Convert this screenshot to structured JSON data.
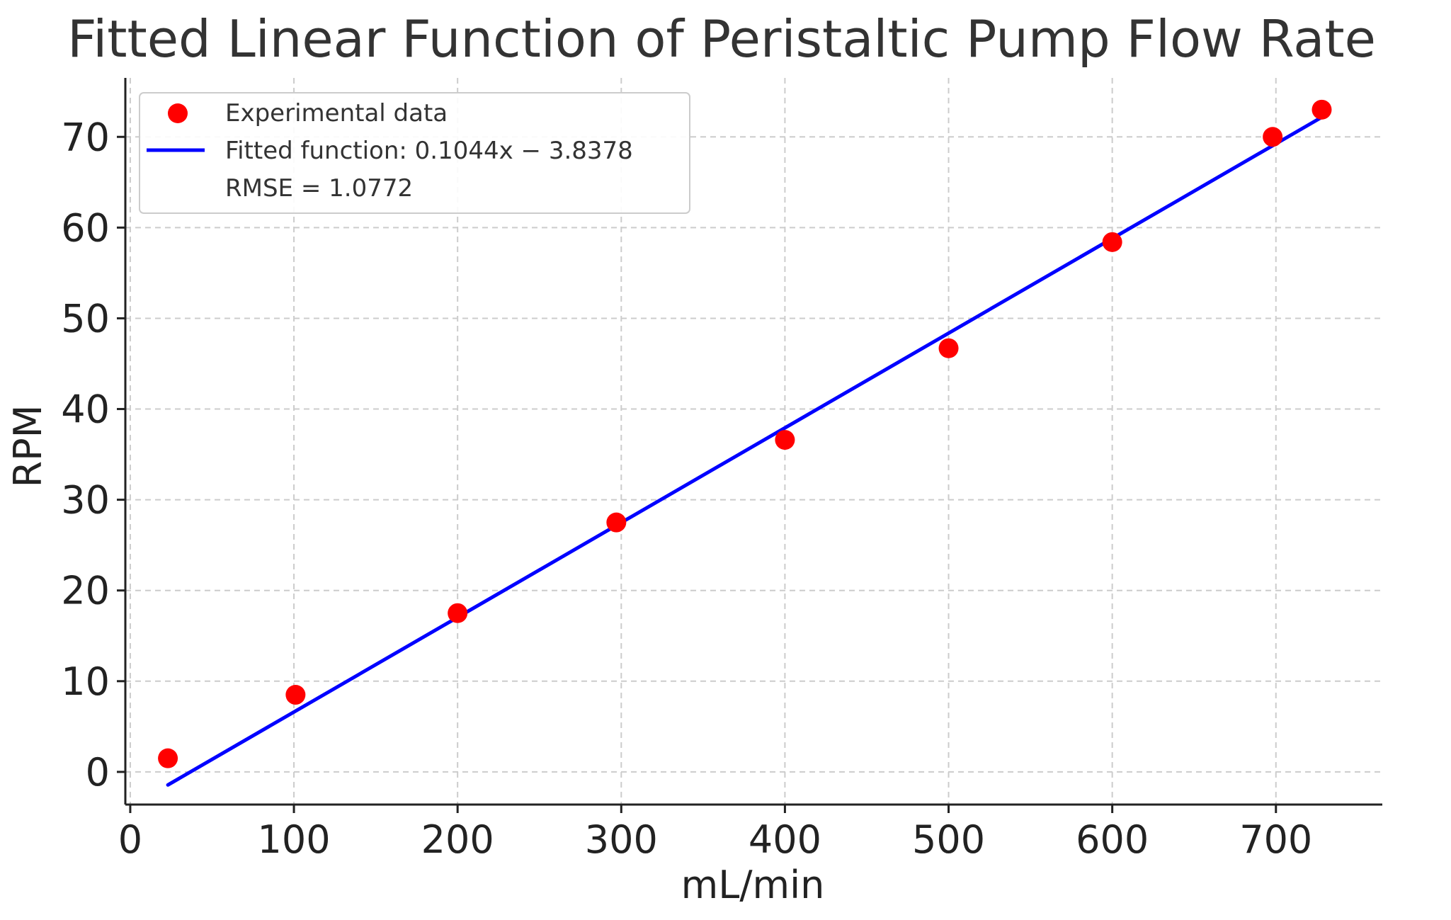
{
  "chart_data": {
    "type": "scatter",
    "title": "Fitted Linear Function of Peristaltic Pump Flow Rate",
    "xlabel": "mL/min",
    "ylabel": "RPM",
    "xlim": [
      -3,
      765
    ],
    "ylim": [
      -3.6,
      76.5
    ],
    "xticks": [
      0,
      100,
      200,
      300,
      400,
      500,
      600,
      700
    ],
    "yticks": [
      0,
      10,
      20,
      30,
      40,
      50,
      60,
      70
    ],
    "grid": true,
    "legend_position": "top-left",
    "series": [
      {
        "name": "Experimental data",
        "kind": "scatter",
        "color": "#ff0000",
        "x": [
          23,
          101,
          200,
          297,
          400,
          500,
          600,
          698,
          728
        ],
        "y": [
          1.5,
          8.5,
          17.5,
          27.5,
          36.6,
          46.7,
          58.4,
          70.0,
          73.0
        ]
      },
      {
        "name": "Fitted function: 0.1044x − 3.8378",
        "kind": "line",
        "color": "#0000ff",
        "slope": 0.1044,
        "intercept": -3.8378,
        "x_range": [
          23,
          728
        ]
      }
    ],
    "legend_entries": [
      {
        "label": "Experimental data",
        "marker": "dot",
        "color": "#ff0000"
      },
      {
        "label": "Fitted function: 0.1044x − 3.8378",
        "marker": "line",
        "color": "#0000ff"
      },
      {
        "label": "RMSE = 1.0772",
        "marker": "none",
        "color": ""
      }
    ]
  }
}
